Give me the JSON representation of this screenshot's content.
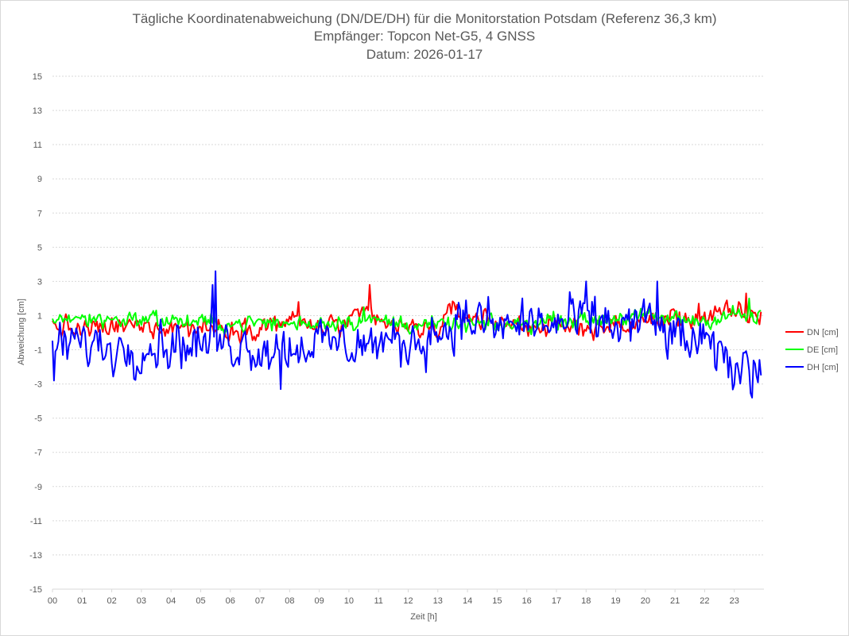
{
  "chart_data": {
    "type": "line",
    "title_lines": [
      "Tägliche Koordinatenabweichung (DN/DE/DH) für die Monitorstation Potsdam (Referenz 36,3 km)",
      "Empfänger: Topcon Net-G5, 4 GNSS",
      "Datum: 2026-01-17"
    ],
    "xlabel": "Zeit [h]",
    "ylabel": "Abweichung [cm]",
    "xlim": [
      0,
      24
    ],
    "ylim": [
      -15,
      15
    ],
    "x_tick_labels": [
      "00",
      "01",
      "02",
      "03",
      "04",
      "05",
      "06",
      "07",
      "08",
      "09",
      "10",
      "11",
      "12",
      "13",
      "14",
      "15",
      "16",
      "17",
      "18",
      "19",
      "20",
      "21",
      "22",
      "23"
    ],
    "y_tick_labels": [
      "15",
      "13",
      "11",
      "9",
      "7",
      "5",
      "3",
      "1",
      "-1",
      "-3",
      "-5",
      "-7",
      "-9",
      "-11",
      "-13",
      "-15"
    ],
    "grid": true,
    "legend_position": "right",
    "sample_interval_min": 3,
    "series": [
      {
        "name": "DN [cm]",
        "color": "#ff0000",
        "keypoints": [
          [
            0,
            0.4
          ],
          [
            1,
            0.1
          ],
          [
            2,
            0.3
          ],
          [
            3,
            0.4
          ],
          [
            4,
            0.4
          ],
          [
            5,
            0.3
          ],
          [
            6,
            0.2
          ],
          [
            7,
            0.4
          ],
          [
            8,
            0.7
          ],
          [
            9,
            0.3
          ],
          [
            10,
            0.5
          ],
          [
            10.7,
            1.2
          ],
          [
            11,
            0.6
          ],
          [
            12,
            0.2
          ],
          [
            13,
            0.3
          ],
          [
            13.5,
            1.2
          ],
          [
            14,
            1.0
          ],
          [
            15,
            0.6
          ],
          [
            16,
            0.5
          ],
          [
            17,
            0.3
          ],
          [
            18,
            0.4
          ],
          [
            19,
            0.3
          ],
          [
            20,
            0.6
          ],
          [
            21,
            0.9
          ],
          [
            22,
            0.8
          ],
          [
            23,
            1.2
          ],
          [
            23.9,
            0.9
          ]
        ],
        "noise": 0.45,
        "spikes": [
          [
            10.7,
            2.8
          ],
          [
            23.4,
            2.3
          ],
          [
            8.3,
            1.8
          ],
          [
            21.8,
            1.7
          ]
        ]
      },
      {
        "name": "DE [cm]",
        "color": "#00ff00",
        "keypoints": [
          [
            0,
            0.9
          ],
          [
            1,
            0.8
          ],
          [
            2,
            0.8
          ],
          [
            3,
            0.8
          ],
          [
            4,
            0.7
          ],
          [
            5,
            0.6
          ],
          [
            6,
            0.5
          ],
          [
            7,
            0.6
          ],
          [
            8,
            0.5
          ],
          [
            9,
            0.6
          ],
          [
            10,
            0.7
          ],
          [
            11,
            0.7
          ],
          [
            12,
            0.5
          ],
          [
            13,
            0.4
          ],
          [
            14,
            0.5
          ],
          [
            15,
            0.4
          ],
          [
            16,
            0.5
          ],
          [
            17,
            0.8
          ],
          [
            18,
            0.7
          ],
          [
            19,
            0.9
          ],
          [
            20,
            0.9
          ],
          [
            21,
            0.8
          ],
          [
            22,
            0.7
          ],
          [
            23,
            1.1
          ],
          [
            23.9,
            0.8
          ]
        ],
        "noise": 0.35,
        "spikes": [
          [
            23.5,
            2.0
          ],
          [
            10.5,
            1.5
          ],
          [
            3.5,
            1.3
          ]
        ]
      },
      {
        "name": "DH [cm]",
        "color": "#0000ff",
        "keypoints": [
          [
            0,
            -0.6
          ],
          [
            1,
            -0.6
          ],
          [
            2,
            -0.9
          ],
          [
            3,
            -0.9
          ],
          [
            4,
            -0.6
          ],
          [
            5,
            -0.7
          ],
          [
            6,
            -0.6
          ],
          [
            7,
            -0.9
          ],
          [
            8,
            -0.9
          ],
          [
            9,
            -0.5
          ],
          [
            10,
            -0.7
          ],
          [
            11,
            -0.6
          ],
          [
            12,
            -0.7
          ],
          [
            13,
            0.1
          ],
          [
            14,
            0.8
          ],
          [
            15,
            0.3
          ],
          [
            16,
            0.6
          ],
          [
            17,
            0.4
          ],
          [
            18,
            0.8
          ],
          [
            19,
            0.4
          ],
          [
            20,
            0.7
          ],
          [
            21,
            -0.3
          ],
          [
            22,
            -0.7
          ],
          [
            23,
            -2.1
          ],
          [
            23.9,
            -1.8
          ]
        ],
        "noise": 1.0,
        "spikes": [
          [
            5.5,
            3.6
          ],
          [
            5.4,
            2.8
          ],
          [
            7.7,
            -3.3
          ],
          [
            23.6,
            -3.8
          ],
          [
            18.0,
            3.0
          ],
          [
            20.4,
            3.0
          ],
          [
            0.05,
            -2.8
          ]
        ]
      }
    ]
  }
}
